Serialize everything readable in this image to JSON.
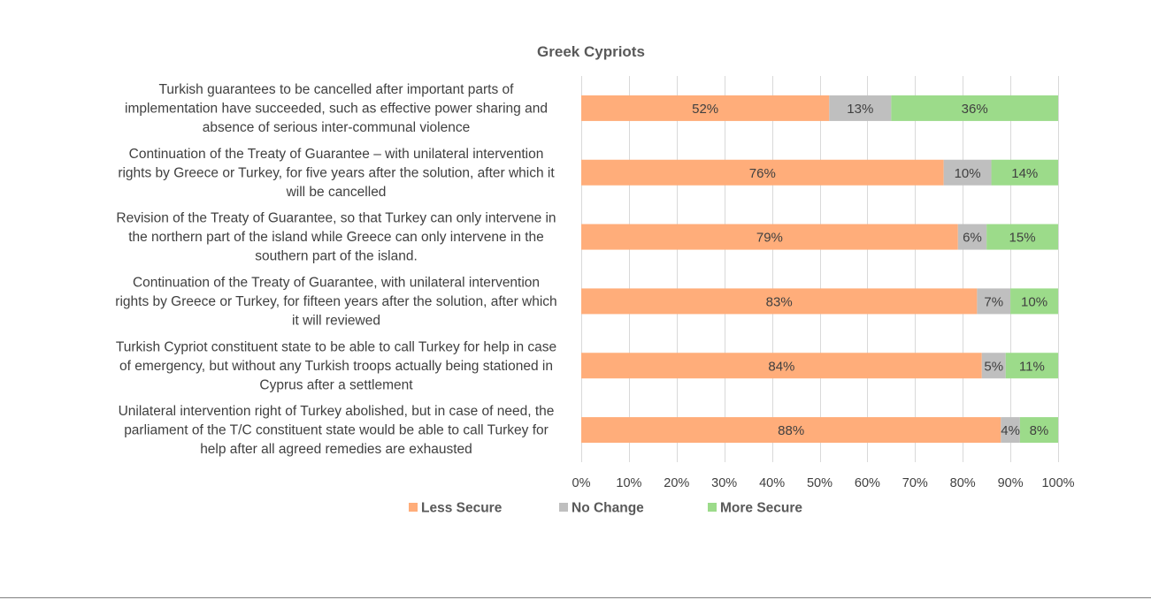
{
  "chart_data": {
    "type": "bar",
    "orientation": "horizontal",
    "stacked": true,
    "percent_stacked": true,
    "title": "Greek Cypriots",
    "categories": [
      "Turkish guarantees to be cancelled after important parts of implementation have succeeded, such as effective power sharing and absence of serious inter-communal violence",
      "Continuation of the Treaty of Guarantee – with unilateral intervention rights by Greece or Turkey, for five years after the solution, after which it will be cancelled",
      "Revision of the Treaty of Guarantee, so that Turkey can only intervene in the northern part of the island while Greece can only intervene in the southern part of the island.",
      "Continuation of the Treaty of Guarantee, with unilateral intervention rights by Greece or Turkey, for fifteen years after the solution, after which it will reviewed",
      "Turkish Cypriot constituent state to be able to call Turkey for help in case of emergency, but without any Turkish troops actually being stationed in Cyprus after a settlement",
      "Unilateral intervention right of Turkey abolished, but in case of need, the parliament of the T/C constituent state would be able to call Turkey for help after all agreed remedies are exhausted"
    ],
    "category_lines": [
      [
        "Turkish guarantees to be cancelled after important parts of",
        "implementation have succeeded, such as effective power sharing and",
        "absence of serious inter-communal violence"
      ],
      [
        "Continuation of the Treaty of Guarantee – with unilateral intervention",
        "rights by Greece or Turkey, for five years after the solution, after which it",
        "will be cancelled"
      ],
      [
        "Revision of the Treaty of Guarantee, so that Turkey can only intervene in",
        "the northern part of the island while Greece can only intervene in the",
        "southern part of the island."
      ],
      [
        "Continuation of the Treaty of Guarantee, with unilateral intervention",
        "rights by Greece or Turkey, for fifteen years after the solution, after which",
        "it will reviewed"
      ],
      [
        "Turkish Cypriot constituent state to be able to call Turkey for help in case",
        "of emergency, but without any Turkish troops actually being stationed in",
        "Cyprus after a settlement"
      ],
      [
        "Unilateral intervention right of Turkey abolished, but in case of need, the",
        "parliament of the T/C constituent state would be able to call Turkey for",
        "help after all agreed remedies are exhausted"
      ]
    ],
    "series": [
      {
        "name": "Less Secure",
        "color": "#ffad7a",
        "values": [
          52,
          76,
          79,
          83,
          84,
          88
        ],
        "labels": [
          "52%",
          "76%",
          "79%",
          "83%",
          "84%",
          "88%"
        ]
      },
      {
        "name": "No Change",
        "color": "#bfbfbf",
        "values": [
          13,
          10,
          6,
          7,
          5,
          4
        ],
        "labels": [
          "13%",
          "10%",
          "6%",
          "7%",
          "5%",
          "4%"
        ]
      },
      {
        "name": "More Secure",
        "color": "#9cdb8a",
        "values": [
          36,
          14,
          15,
          10,
          11,
          8
        ],
        "labels": [
          "36%",
          "14%",
          "15%",
          "10%",
          "11%",
          "8%"
        ]
      }
    ],
    "xlim": [
      0,
      100
    ],
    "x_ticks": [
      "0%",
      "10%",
      "20%",
      "30%",
      "40%",
      "50%",
      "60%",
      "70%",
      "80%",
      "90%",
      "100%"
    ],
    "xlabel": "",
    "ylabel": "",
    "grid": "vertical",
    "legend": "bottom"
  }
}
